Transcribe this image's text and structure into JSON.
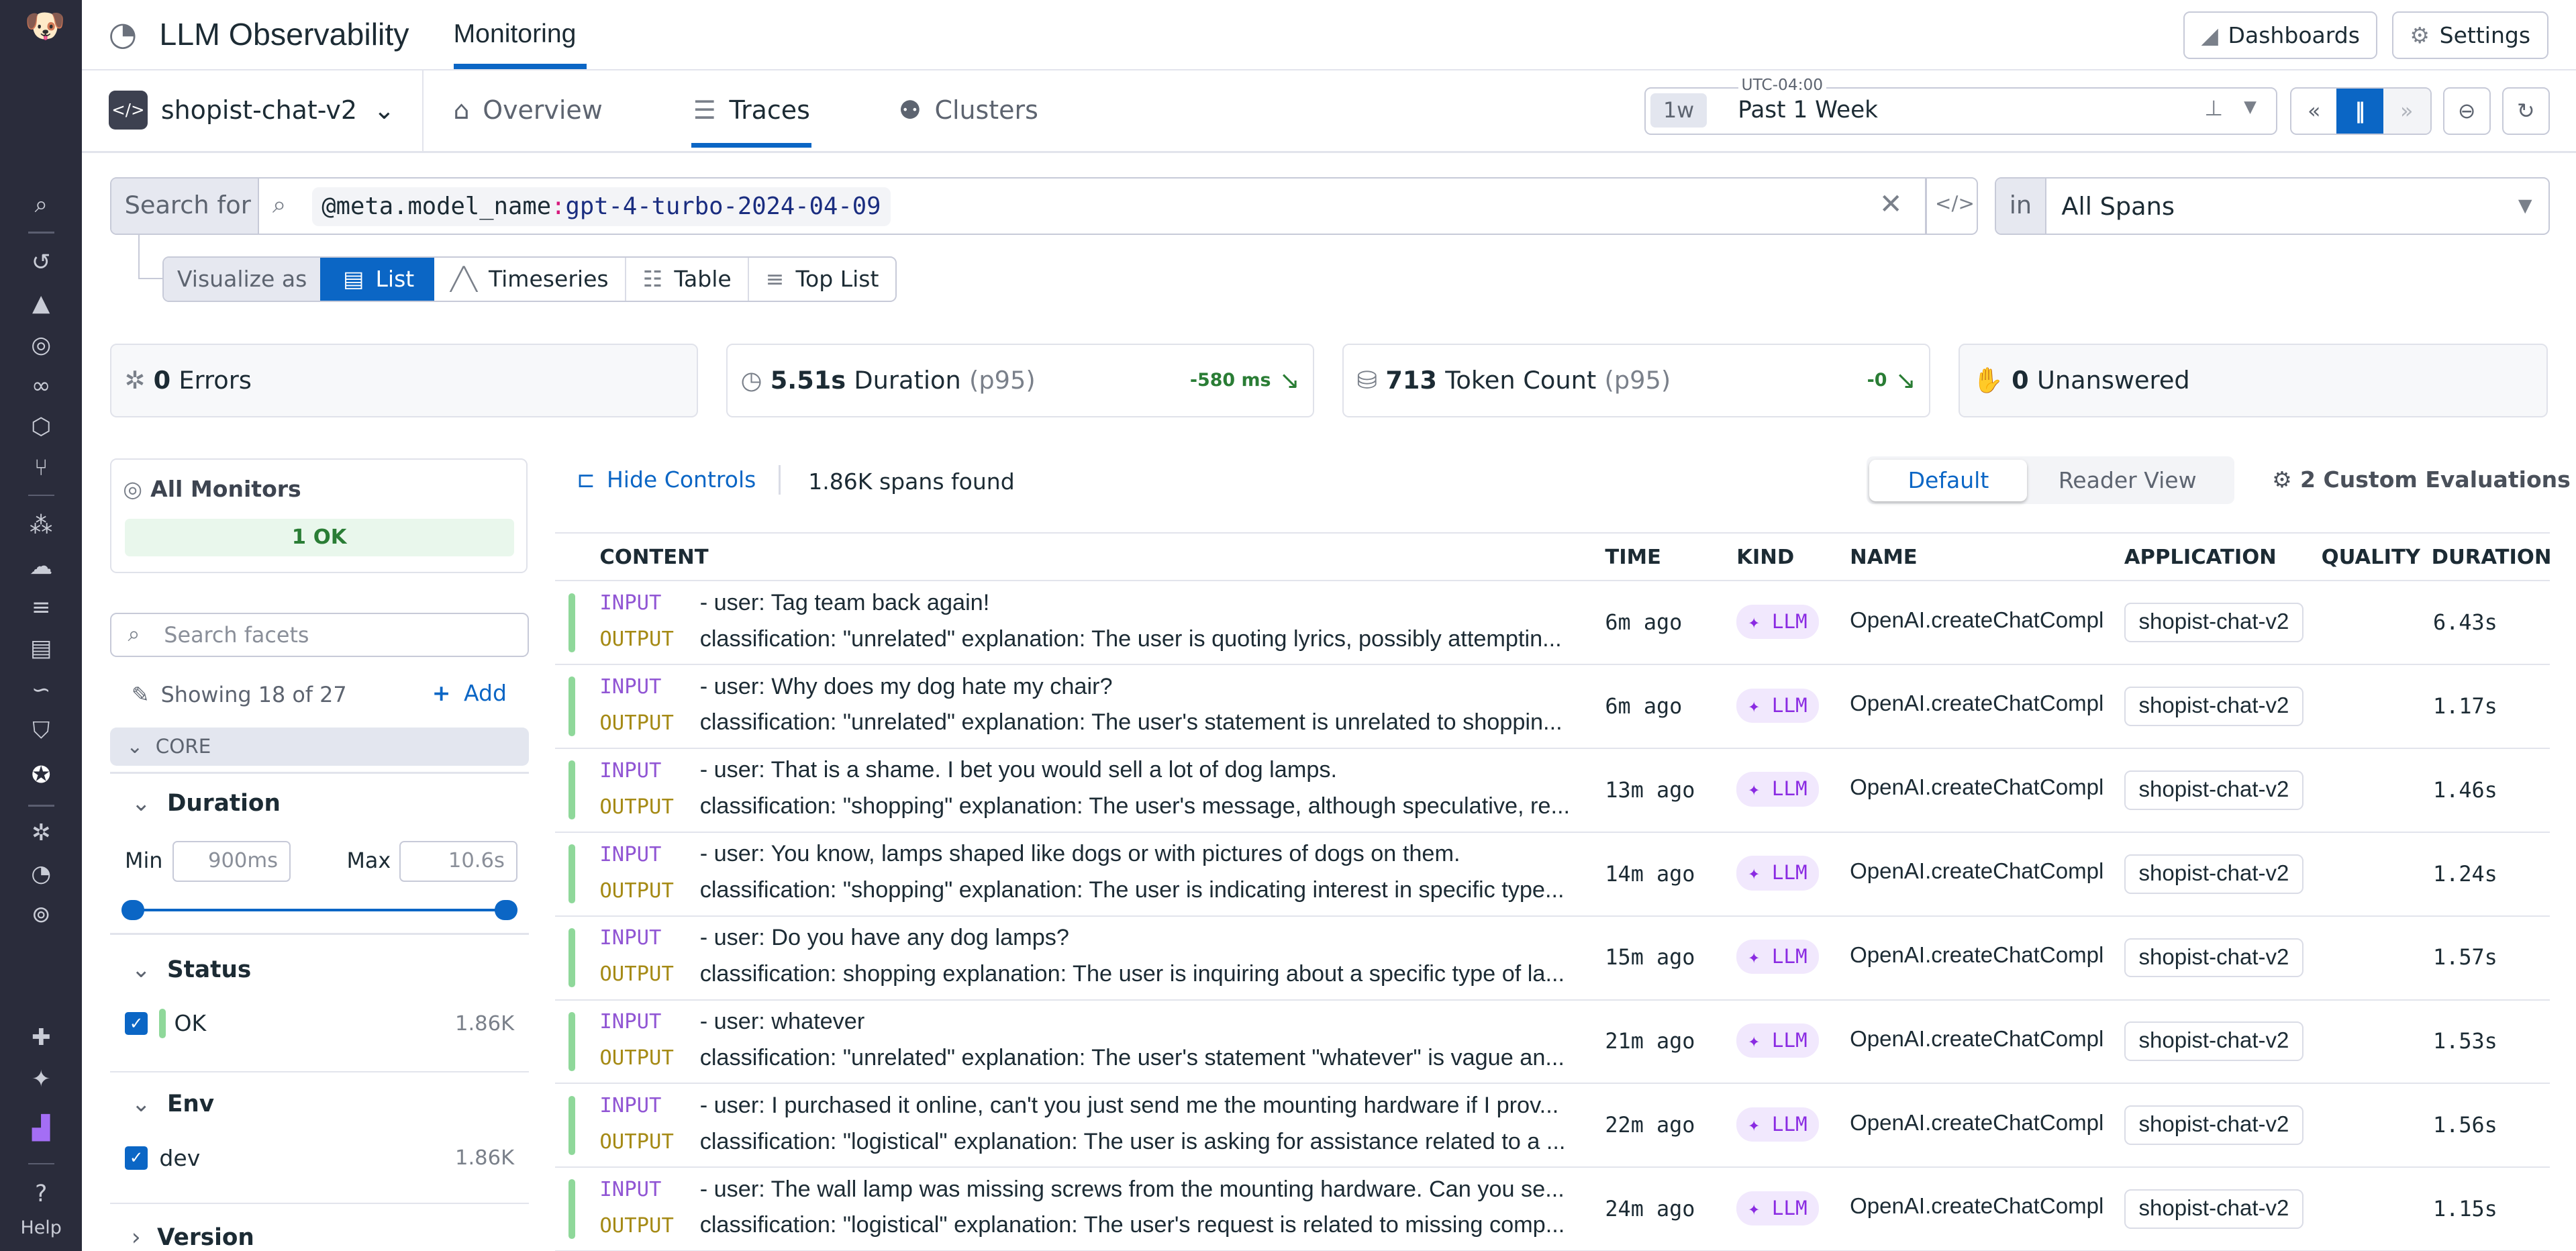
{
  "header": {
    "product": "LLM Observability",
    "section_tab": "Monitoring",
    "dashboards": "Dashboards",
    "settings": "Settings"
  },
  "subnav": {
    "app": "shopist-chat-v2",
    "tabs": [
      "Overview",
      "Traces",
      "Clusters"
    ],
    "active_tab": "Traces"
  },
  "time": {
    "timezone": "UTC-04:00",
    "short": "1w",
    "label": "Past 1 Week"
  },
  "search": {
    "prefix": "Search for",
    "key": "@meta.model_name",
    "colon": ":",
    "value": "gpt-4-turbo-2024-04-09",
    "in_label": "in",
    "scope": "All Spans"
  },
  "visualize": {
    "label": "Visualize as",
    "options": [
      "List",
      "Timeseries",
      "Table",
      "Top List"
    ],
    "active": "List"
  },
  "stats": {
    "errors": {
      "value": "0",
      "label": "Errors"
    },
    "duration": {
      "value": "5.51s",
      "label": "Duration",
      "suffix": "(p95)",
      "delta": "-580 ms"
    },
    "tokens": {
      "value": "713",
      "label": "Token Count",
      "suffix": "(p95)",
      "delta": "-0"
    },
    "unanswered": {
      "value": "0",
      "label": "Unanswered"
    }
  },
  "monitors": {
    "title": "All Monitors",
    "status": "1 OK"
  },
  "facets": {
    "search_placeholder": "Search facets",
    "showing": "Showing 18 of 27",
    "add": "Add",
    "group": "CORE",
    "duration": {
      "title": "Duration",
      "min_label": "Min",
      "min": "900ms",
      "max_label": "Max",
      "max": "10.6s"
    },
    "status": {
      "title": "Status",
      "item": "OK",
      "count": "1.86K"
    },
    "env": {
      "title": "Env",
      "item": "dev",
      "count": "1.86K"
    },
    "version": {
      "title": "Version"
    }
  },
  "list": {
    "hide_controls": "Hide Controls",
    "found": "1.86K spans found",
    "views": [
      "Default",
      "Reader View"
    ],
    "active_view": "Default",
    "custom_evals": "2 Custom Evaluations",
    "columns": [
      "CONTENT",
      "TIME",
      "KIND",
      "NAME",
      "APPLICATION",
      "QUALITY",
      "DURATION"
    ],
    "input_label": "INPUT",
    "output_label": "OUTPUT",
    "rows": [
      {
        "input": "- user: Tag team back again!",
        "output": "classification: \"unrelated\" explanation: The user is quoting lyrics, possibly attemptin...",
        "time": "6m ago",
        "kind": "LLM",
        "name": "OpenAI.createChatComple",
        "app": "shopist-chat-v2",
        "duration": "6.43s"
      },
      {
        "input": "- user: Why does my dog hate my chair?",
        "output": "classification: \"unrelated\" explanation: The user's statement is unrelated to shoppin...",
        "time": "6m ago",
        "kind": "LLM",
        "name": "OpenAI.createChatComple",
        "app": "shopist-chat-v2",
        "duration": "1.17s"
      },
      {
        "input": "- user: That is a shame. I bet you would sell a lot of dog lamps.",
        "output": "classification: \"shopping\" explanation: The user's message, although speculative, re...",
        "time": "13m ago",
        "kind": "LLM",
        "name": "OpenAI.createChatComple",
        "app": "shopist-chat-v2",
        "duration": "1.46s"
      },
      {
        "input": "- user: You know, lamps shaped like dogs or with pictures of dogs on them.",
        "output": "classification: \"shopping\" explanation: The user is indicating interest in specific type...",
        "time": "14m ago",
        "kind": "LLM",
        "name": "OpenAI.createChatComple",
        "app": "shopist-chat-v2",
        "duration": "1.24s"
      },
      {
        "input": "- user: Do you have any dog lamps?",
        "output": "classification: shopping explanation: The user is inquiring about a specific type of la...",
        "time": "15m ago",
        "kind": "LLM",
        "name": "OpenAI.createChatComple",
        "app": "shopist-chat-v2",
        "duration": "1.57s"
      },
      {
        "input": "- user: whatever",
        "output": "classification: \"unrelated\" explanation: The user's statement \"whatever\" is vague an...",
        "time": "21m ago",
        "kind": "LLM",
        "name": "OpenAI.createChatComple",
        "app": "shopist-chat-v2",
        "duration": "1.53s"
      },
      {
        "input": "- user: I purchased it online, can't you just send me the mounting hardware if I prov...",
        "output": "classification: \"logistical\" explanation: The user is asking for assistance related to a ...",
        "time": "22m ago",
        "kind": "LLM",
        "name": "OpenAI.createChatComple",
        "app": "shopist-chat-v2",
        "duration": "1.56s"
      },
      {
        "input": "- user: The wall lamp was missing screws from the mounting hardware. Can you se...",
        "output": "classification: \"logistical\" explanation: The user's request is related to missing comp...",
        "time": "24m ago",
        "kind": "LLM",
        "name": "OpenAI.createChatComple",
        "app": "shopist-chat-v2",
        "duration": "1.15s"
      }
    ]
  },
  "sidebar": {
    "help": "Help"
  },
  "colors": {
    "accent": "#0b66c5",
    "sidebar": "#2a2c3b",
    "ok": "#8fd89a",
    "input": "#9156d4",
    "output": "#a58a15",
    "llm": "#8a2be2"
  }
}
